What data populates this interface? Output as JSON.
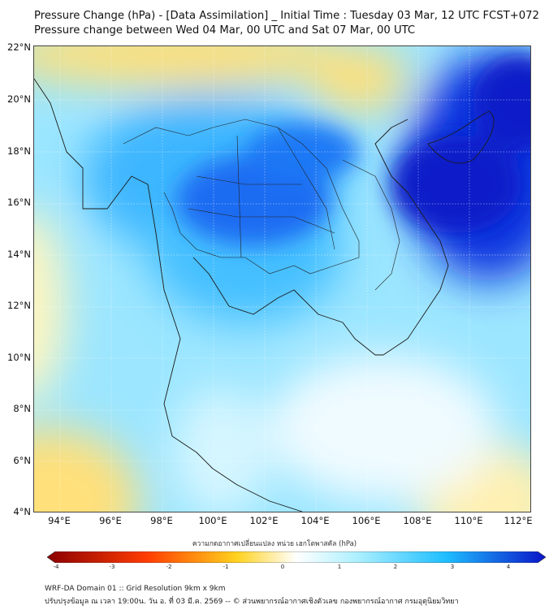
{
  "header": {
    "title_line1": "Pressure Change (hPa) - [Data Assimilation] _ Initial Time : Tuesday 03 Mar, 12 UTC FCST+072",
    "title_line2": "Pressure change between Wed 04 Mar, 00 UTC and Sat 07 Mar, 00 UTC"
  },
  "map": {
    "region": "Mainland Southeast Asia (Thailand and neighbours)",
    "lat_labels": [
      "22°N",
      "20°N",
      "18°N",
      "16°N",
      "14°N",
      "12°N",
      "10°N",
      "8°N",
      "6°N",
      "4°N"
    ],
    "lon_labels": [
      "94°E",
      "96°E",
      "98°E",
      "100°E",
      "102°E",
      "104°E",
      "106°E",
      "108°E",
      "110°E",
      "112°E"
    ],
    "field_features": [
      {
        "feature": "strong pressure rise maximum",
        "location": "Gulf of Tonkin / South China Sea east of Vietnam"
      },
      {
        "feature": "pressure rise core",
        "location": "central Thailand and Laos"
      },
      {
        "feature": "slight pressure fall",
        "location": "northern edge near 22°N and southwest Andaman Sea"
      }
    ]
  },
  "colorbar": {
    "label": "ความกดอากาศเปลี่ยนแปลง หน่วย เฮกโตพาสคัล (hPa)",
    "ticks": [
      "-4",
      "-3",
      "-2",
      "-1",
      "0",
      "1",
      "2",
      "3",
      "4"
    ],
    "range": [
      -4,
      4
    ],
    "colors": {
      "neg_strong": "#8b0000",
      "neg_mid": "#ff3c00",
      "neg_weak": "#ffd21e",
      "neutral": "#ffffff",
      "pos_weak": "#aef0ff",
      "pos_mid": "#1ebeff",
      "pos_strong": "#0a14c8"
    }
  },
  "footer": {
    "line1": "WRF-DA Domain 01 :: Grid Resolution 9km x 9km",
    "line2": "ปรับปรุงข้อมูล ณ เวลา 19:00น. วัน อ. ที่ 03 มี.ค. 2569 -- © ส่วนพยากรณ์อากาศเชิงตัวเลข กองพยากรณ์อากาศ กรมอุตุนิยมวิทยา"
  }
}
